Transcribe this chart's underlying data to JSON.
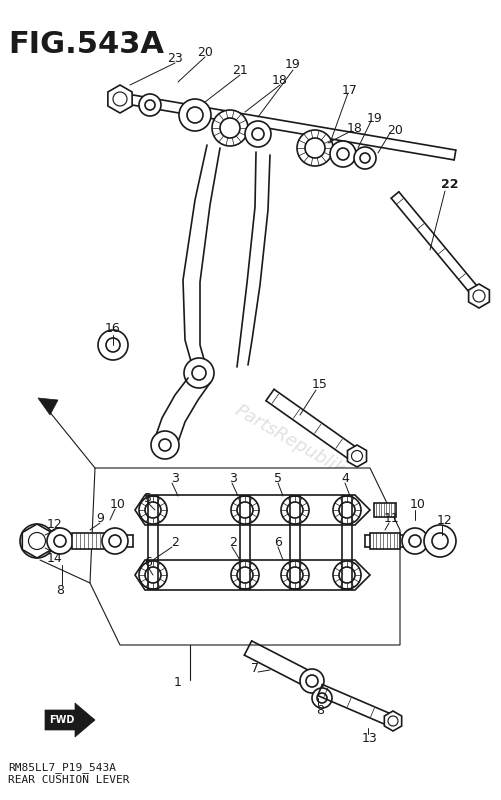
{
  "title": "FIG.543A",
  "subtitle1": "RM85LL7_P19_543A",
  "subtitle2": "REAR CUSHION LEVER",
  "bg": "#ffffff",
  "lc": "#1a1a1a",
  "watermark": "PartsRepublik"
}
